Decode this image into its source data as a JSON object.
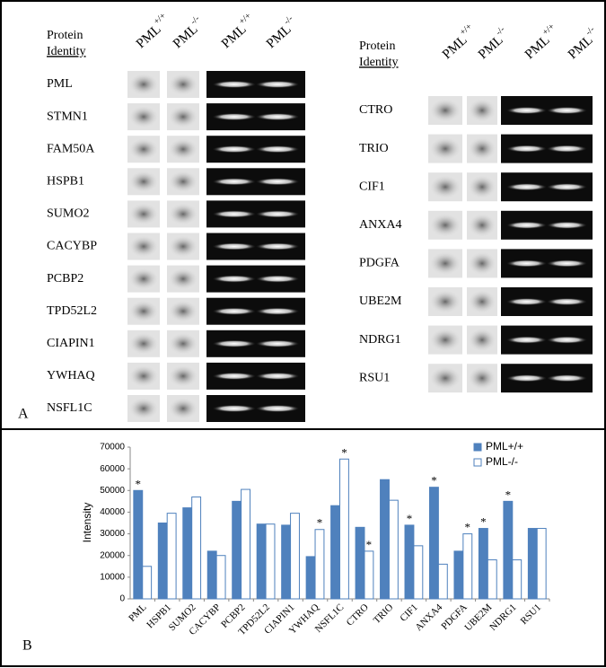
{
  "panel_a": {
    "label": "A",
    "left": {
      "header": [
        "Protein",
        "Identity"
      ],
      "columns": [
        {
          "name": "PML",
          "sup": "+/+"
        },
        {
          "name": "PML",
          "sup": "-/-"
        },
        {
          "name": "PML",
          "sup": "+/+"
        },
        {
          "name": "PML",
          "sup": "-/-"
        }
      ],
      "proteins": [
        "PML",
        "STMN1",
        "FAM50A",
        "HSPB1",
        "SUMO2",
        "CACYBP",
        "PCBP2",
        "TPD52L2",
        "CIAPIN1",
        "YWHAQ",
        "NSFL1C"
      ]
    },
    "right": {
      "header": [
        "Protein",
        "Identity"
      ],
      "columns": [
        {
          "name": "PML",
          "sup": "+/+"
        },
        {
          "name": "PML",
          "sup": "-/-"
        },
        {
          "name": "PML",
          "sup": "+/+"
        },
        {
          "name": "PML",
          "sup": "-/-"
        }
      ],
      "proteins": [
        "CTRO",
        "TRIO",
        "CIF1",
        "ANXA4",
        "PDGFA",
        "UBE2M",
        "NDRG1",
        "RSU1"
      ]
    }
  },
  "chart_data": {
    "type": "bar",
    "panel_label": "B",
    "y_label": "Intensity",
    "categories": [
      "PML",
      "HSPB1",
      "SUMO2",
      "CACYBP",
      "PCBP2",
      "TPD52L2",
      "CIAPIN1",
      "YWHAQ",
      "NSFL1C",
      "CTRO",
      "TRIO",
      "CIF1",
      "ANXA4",
      "PDGFA",
      "UBE2M",
      "NDRG1",
      "RSU1"
    ],
    "series": [
      {
        "name": "PML+/+",
        "color": "#4f81bd",
        "edgecolor": "#4f81bd",
        "values": [
          50000,
          35000,
          42000,
          22000,
          45000,
          34500,
          34000,
          19500,
          43000,
          33000,
          55000,
          34000,
          51500,
          22000,
          32500,
          45000,
          32500
        ]
      },
      {
        "name": "PML-/-",
        "color": "#ffffff",
        "edgecolor": "#4f81bd",
        "values": [
          15000,
          39500,
          47000,
          20000,
          50500,
          34500,
          39500,
          32000,
          64500,
          22000,
          45500,
          24500,
          16000,
          30000,
          18000,
          18000,
          32500
        ]
      }
    ],
    "annotations": [
      {
        "text": "*",
        "category": "PML",
        "series": "PML+/+"
      },
      {
        "text": "*",
        "category": "YWHAQ",
        "series": "PML-/-"
      },
      {
        "text": "*",
        "category": "NSFL1C",
        "series": "PML-/-"
      },
      {
        "text": "*",
        "category": "CTRO",
        "series": "PML-/-"
      },
      {
        "text": "*",
        "category": "CIF1",
        "series": "PML+/+"
      },
      {
        "text": "*",
        "category": "ANXA4",
        "series": "PML+/+"
      },
      {
        "text": "*",
        "category": "PDGFA",
        "series": "PML-/-"
      },
      {
        "text": "*",
        "category": "UBE2M",
        "series": "PML+/+"
      },
      {
        "text": "*",
        "category": "NDRG1",
        "series": "PML+/+"
      }
    ],
    "ylim": [
      0,
      70000
    ],
    "yticks": [
      0,
      10000,
      20000,
      30000,
      40000,
      50000,
      60000,
      70000
    ],
    "grid": false,
    "legend": "upper right"
  }
}
